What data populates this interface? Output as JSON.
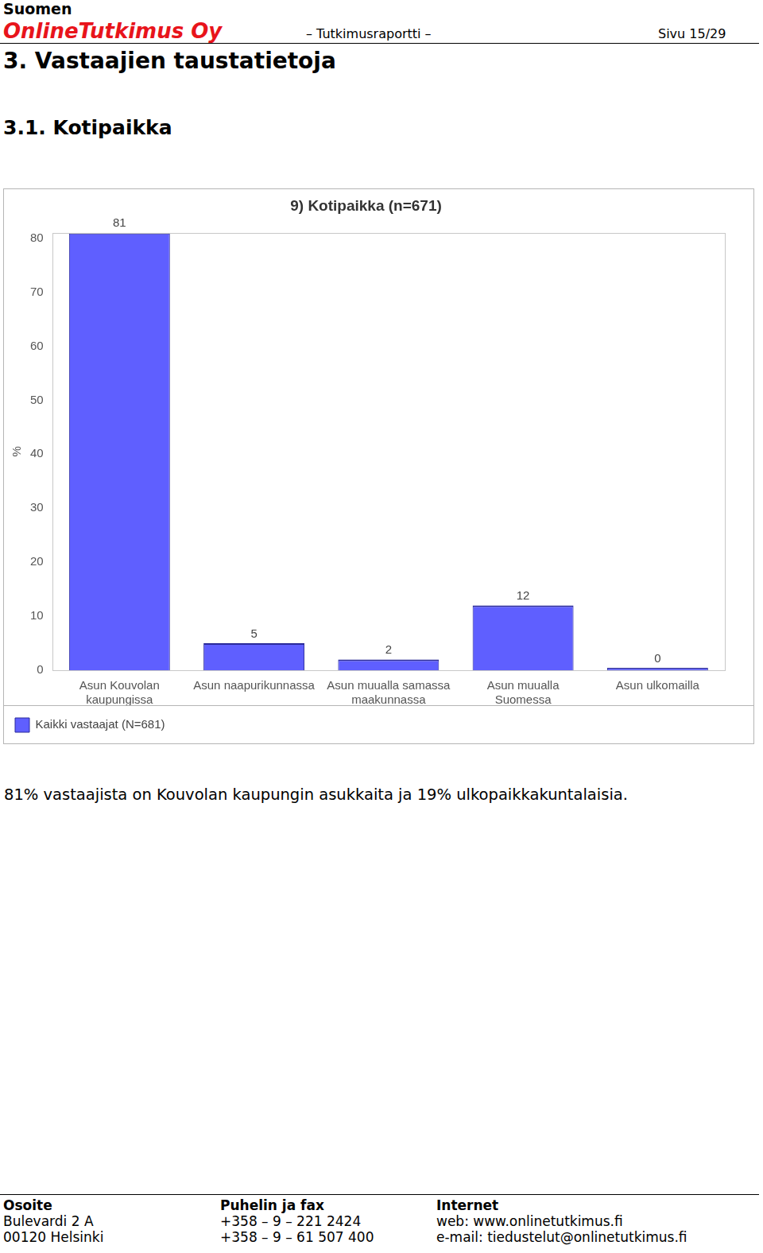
{
  "header": {
    "company_line1": "Suomen",
    "company_line2": "OnlineTutkimus Oy",
    "report": "– Tutkimusraportti –",
    "page": "Sivu 15/29"
  },
  "headings": [
    "3. Vastaajien taustatietoja",
    "3.1. Kotipaikka"
  ],
  "chart_data": {
    "type": "bar",
    "title": "9) Kotipaikka (n=671)",
    "y_label": "%",
    "categories": [
      [
        "Asun Kouvolan",
        "kaupungissa"
      ],
      "Asun naapurikunnassa",
      [
        "Asun muualla samassa",
        "maakunnassa"
      ],
      [
        "Asun muualla",
        "Suomessa"
      ],
      "Asun ulkomailla"
    ],
    "series": [
      {
        "name": "Kaikki vastaajat (N=681)",
        "color": "#5f5fff",
        "values": [
          81,
          5,
          2,
          12,
          0
        ]
      }
    ],
    "ylim": [
      0,
      81
    ],
    "yticks": [
      0,
      10,
      20,
      30,
      40,
      50,
      60,
      70,
      80
    ],
    "grid": false,
    "legend": "bottom-left",
    "data_labels": true
  },
  "text": "81% vastaajista on Kouvolan kaupungin asukkaita ja 19% ulkopaikkakuntalaisia.",
  "footer": [
    {
      "title": "Osoite",
      "lines": [
        "Bulevardi 2 A",
        "00120 Helsinki"
      ]
    },
    {
      "title": "Puhelin ja fax",
      "lines": [
        "+358 – 9 – 221 2424",
        "+358 – 9 – 61 507 400"
      ]
    },
    {
      "title": "Internet",
      "lines": [
        "web: www.onlinetutkimus.fi",
        "e-mail: tiedustelut@onlinetutkimus.fi"
      ]
    }
  ]
}
